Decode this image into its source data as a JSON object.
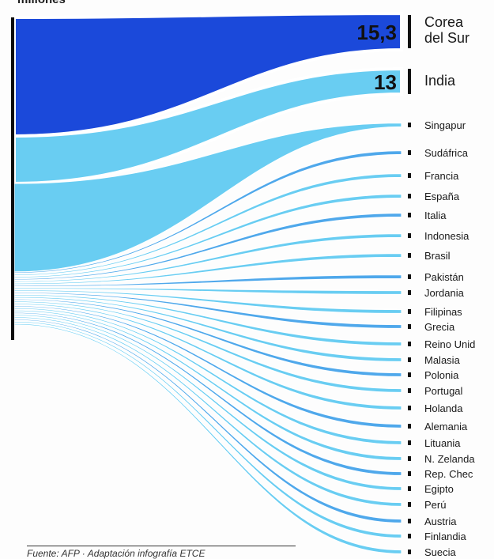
{
  "colors": {
    "flow_light": "#3fbfee",
    "flow_mid": "#1e90e6",
    "flow_dark": "#0f3fd8",
    "source_bar": "#0b0b0b"
  },
  "chart_data": {
    "type": "sankey",
    "header_fragment": "millones",
    "value_unit": "",
    "targets": [
      {
        "label": "Corea del Sur",
        "value": 15.3,
        "value_text": "15,3",
        "highlight": true
      },
      {
        "label": "India",
        "value": 13,
        "value_text": "13",
        "highlight": false
      },
      {
        "label": "Singapur",
        "value": null,
        "value_text": ""
      },
      {
        "label": "Sudáfrica",
        "value": null,
        "value_text": ""
      },
      {
        "label": "Francia",
        "value": null,
        "value_text": ""
      },
      {
        "label": "España",
        "value": null,
        "value_text": ""
      },
      {
        "label": "Italia",
        "value": null,
        "value_text": ""
      },
      {
        "label": "Indonesia",
        "value": null,
        "value_text": ""
      },
      {
        "label": "Brasil",
        "value": null,
        "value_text": ""
      },
      {
        "label": "Pakistán",
        "value": null,
        "value_text": ""
      },
      {
        "label": "Jordania",
        "value": null,
        "value_text": ""
      },
      {
        "label": "Filipinas",
        "value": null,
        "value_text": ""
      },
      {
        "label": "Grecia",
        "value": null,
        "value_text": ""
      },
      {
        "label": "Reino Unid",
        "value": null,
        "value_text": ""
      },
      {
        "label": "Malasia",
        "value": null,
        "value_text": ""
      },
      {
        "label": "Polonia",
        "value": null,
        "value_text": ""
      },
      {
        "label": "Portugal",
        "value": null,
        "value_text": ""
      },
      {
        "label": "Holanda",
        "value": null,
        "value_text": ""
      },
      {
        "label": "Alemania",
        "value": null,
        "value_text": ""
      },
      {
        "label": "Lituania",
        "value": null,
        "value_text": ""
      },
      {
        "label": "N. Zelanda",
        "value": null,
        "value_text": ""
      },
      {
        "label": "Rep. Chec",
        "value": null,
        "value_text": ""
      },
      {
        "label": "Egipto",
        "value": null,
        "value_text": ""
      },
      {
        "label": "Perú",
        "value": null,
        "value_text": ""
      },
      {
        "label": "Austria",
        "value": null,
        "value_text": ""
      },
      {
        "label": "Finlandia",
        "value": null,
        "value_text": ""
      },
      {
        "label": "Suecia",
        "value": null,
        "value_text": ""
      }
    ]
  },
  "footer": {
    "source_text": "Fuente: AFP · Adaptación infografía ETCE"
  }
}
